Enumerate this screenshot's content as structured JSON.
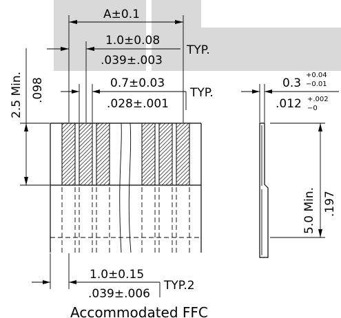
{
  "colors": {
    "background_block": "#d9d9d9",
    "line": "#000000",
    "background": "#ffffff"
  },
  "dims": {
    "a": "A±0.1",
    "pitch_mm": "1.0±0.08",
    "pitch_in": ".039±.003",
    "pitch_typ": "TYP.",
    "width_mm": "0.7±0.03",
    "width_in": ".028±.001",
    "width_typ": "TYP.",
    "length_mm": "2.5 Min.",
    "length_in": ".098",
    "thk_mm_base": "0.3",
    "thk_mm_plus": "+0.04",
    "thk_mm_minus": "−0.01",
    "thk_in_base": ".012",
    "thk_in_plus": "+.002",
    "thk_in_minus": "−0",
    "side_mm": "5.0 Min.",
    "side_in": ".197",
    "bottom_mm": "1.0±0.15",
    "bottom_in": ".039±.006",
    "bottom_typ": "TYP.2"
  },
  "caption": "Accommodated FFC"
}
